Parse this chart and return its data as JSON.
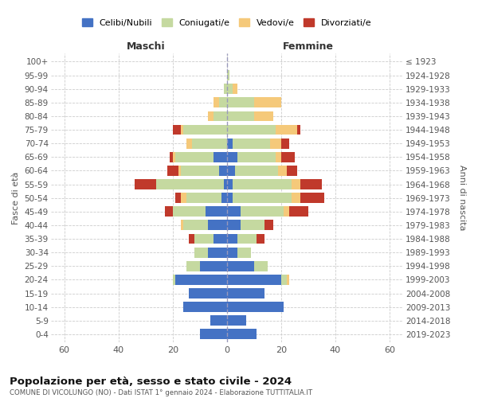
{
  "age_groups": [
    "0-4",
    "5-9",
    "10-14",
    "15-19",
    "20-24",
    "25-29",
    "30-34",
    "35-39",
    "40-44",
    "45-49",
    "50-54",
    "55-59",
    "60-64",
    "65-69",
    "70-74",
    "75-79",
    "80-84",
    "85-89",
    "90-94",
    "95-99",
    "100+"
  ],
  "birth_years": [
    "2019-2023",
    "2014-2018",
    "2009-2013",
    "2004-2008",
    "1999-2003",
    "1994-1998",
    "1989-1993",
    "1984-1988",
    "1979-1983",
    "1974-1978",
    "1969-1973",
    "1964-1968",
    "1959-1963",
    "1954-1958",
    "1949-1953",
    "1944-1948",
    "1939-1943",
    "1934-1938",
    "1929-1933",
    "1924-1928",
    "≤ 1923"
  ],
  "colors": {
    "celibi": "#4472c4",
    "coniugati": "#c5d9a0",
    "vedovi": "#f5c97a",
    "divorziati": "#c0392b"
  },
  "male": {
    "celibi": [
      10,
      6,
      16,
      14,
      19,
      10,
      7,
      5,
      7,
      8,
      2,
      1,
      3,
      5,
      0,
      0,
      0,
      0,
      0,
      0,
      0
    ],
    "coniugati": [
      0,
      0,
      0,
      0,
      1,
      5,
      5,
      7,
      9,
      12,
      13,
      25,
      14,
      14,
      13,
      16,
      5,
      3,
      1,
      0,
      0
    ],
    "vedovi": [
      0,
      0,
      0,
      0,
      0,
      0,
      0,
      0,
      1,
      0,
      2,
      0,
      1,
      1,
      2,
      1,
      2,
      2,
      0,
      0,
      0
    ],
    "divorziati": [
      0,
      0,
      0,
      0,
      0,
      0,
      0,
      2,
      0,
      3,
      2,
      8,
      4,
      1,
      0,
      3,
      0,
      0,
      0,
      0,
      0
    ]
  },
  "female": {
    "celibi": [
      11,
      7,
      21,
      14,
      20,
      10,
      4,
      4,
      5,
      5,
      2,
      2,
      3,
      4,
      2,
      0,
      0,
      0,
      0,
      0,
      0
    ],
    "coniugati": [
      0,
      0,
      0,
      0,
      2,
      5,
      5,
      7,
      9,
      16,
      22,
      22,
      16,
      14,
      14,
      18,
      10,
      10,
      2,
      1,
      0
    ],
    "vedovi": [
      0,
      0,
      0,
      0,
      1,
      0,
      0,
      0,
      0,
      2,
      3,
      3,
      3,
      2,
      4,
      8,
      7,
      10,
      2,
      0,
      0
    ],
    "divorziati": [
      0,
      0,
      0,
      0,
      0,
      0,
      0,
      3,
      3,
      7,
      9,
      8,
      4,
      5,
      3,
      1,
      0,
      0,
      0,
      0,
      0
    ]
  },
  "xlim": [
    -65,
    65
  ],
  "xticks": [
    -60,
    -40,
    -20,
    0,
    20,
    40,
    60
  ],
  "xtick_labels": [
    "60",
    "40",
    "20",
    "0",
    "20",
    "40",
    "60"
  ],
  "title": "Popolazione per età, sesso e stato civile - 2024",
  "subtitle": "COMUNE DI VICOLUNGO (NO) - Dati ISTAT 1° gennaio 2024 - Elaborazione TUTTITALIA.IT",
  "ylabel_left": "Fasce di età",
  "ylabel_right": "Anni di nascita",
  "label_maschi": "Maschi",
  "label_femmine": "Femmine",
  "legend_labels": [
    "Celibi/Nubili",
    "Coniugati/e",
    "Vedovi/e",
    "Divorziati/e"
  ],
  "bar_height": 0.75,
  "figsize": [
    6.0,
    5.0
  ],
  "dpi": 100
}
